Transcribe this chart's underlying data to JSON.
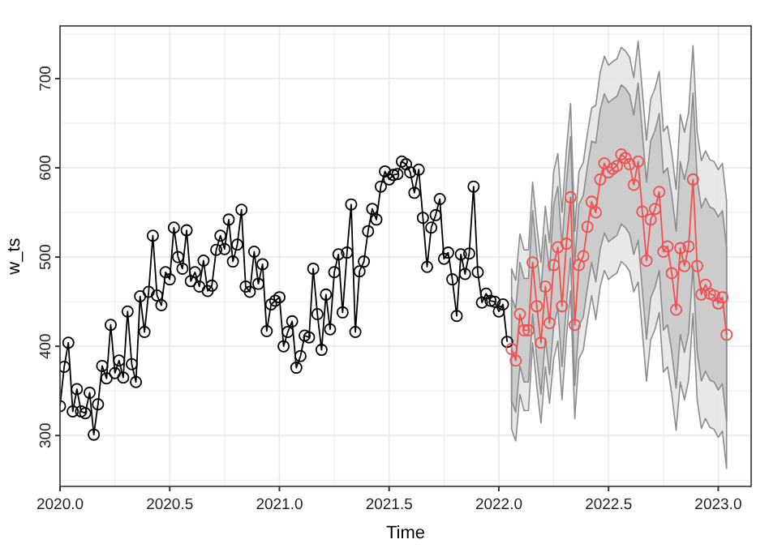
{
  "chart_data": {
    "type": "line",
    "xlabel": "Time",
    "ylabel": "w_ts",
    "xlim": [
      2020.0,
      2023.15
    ],
    "ylim": [
      243,
      759
    ],
    "xticks": [
      {
        "value": 2020,
        "label": "2020.0"
      },
      {
        "value": 2020.25,
        "label": null
      },
      {
        "value": 2020.5,
        "label": "2020.5"
      },
      {
        "value": 2020.75,
        "label": null
      },
      {
        "value": 2021,
        "label": "2021.0"
      },
      {
        "value": 2021.25,
        "label": null
      },
      {
        "value": 2021.5,
        "label": "2021.5"
      },
      {
        "value": 2021.75,
        "label": null
      },
      {
        "value": 2022,
        "label": "2022.0"
      },
      {
        "value": 2022.25,
        "label": null
      },
      {
        "value": 2022.5,
        "label": "2022.5"
      },
      {
        "value": 2022.75,
        "label": null
      },
      {
        "value": 2023,
        "label": "2023.0"
      }
    ],
    "yticks": [
      {
        "value": 250,
        "label": null
      },
      300,
      {
        "value": 350,
        "label": null
      },
      400,
      {
        "value": 450,
        "label": null
      },
      500,
      {
        "value": 550,
        "label": null
      },
      600,
      {
        "value": 650,
        "label": null
      },
      700,
      {
        "value": 750,
        "label": null
      }
    ],
    "grid": true,
    "marker": "circle",
    "line_style": "solid",
    "series": [
      {
        "color": "#000000",
        "x": [
          2020.0,
          2020.019,
          2020.038,
          2020.058,
          2020.077,
          2020.096,
          2020.115,
          2020.135,
          2020.154,
          2020.173,
          2020.192,
          2020.212,
          2020.231,
          2020.25,
          2020.269,
          2020.288,
          2020.308,
          2020.327,
          2020.346,
          2020.365,
          2020.385,
          2020.404,
          2020.423,
          2020.442,
          2020.462,
          2020.481,
          2020.5,
          2020.519,
          2020.538,
          2020.558,
          2020.577,
          2020.596,
          2020.615,
          2020.635,
          2020.654,
          2020.673,
          2020.692,
          2020.712,
          2020.731,
          2020.75,
          2020.769,
          2020.788,
          2020.808,
          2020.827,
          2020.846,
          2020.865,
          2020.885,
          2020.904,
          2020.923,
          2020.942,
          2020.962,
          2020.981,
          2021.0,
          2021.019,
          2021.038,
          2021.058,
          2021.077,
          2021.096,
          2021.115,
          2021.135,
          2021.154,
          2021.173,
          2021.192,
          2021.212,
          2021.231,
          2021.25,
          2021.269,
          2021.288,
          2021.308,
          2021.327,
          2021.346,
          2021.365,
          2021.385,
          2021.404,
          2021.423,
          2021.442,
          2021.462,
          2021.481,
          2021.5,
          2021.519,
          2021.538,
          2021.558,
          2021.577,
          2021.596,
          2021.615,
          2021.635,
          2021.654,
          2021.673,
          2021.692,
          2021.712,
          2021.731,
          2021.75,
          2021.769,
          2021.788,
          2021.808,
          2021.827,
          2021.846,
          2021.865,
          2021.885,
          2021.904,
          2021.923,
          2021.942,
          2021.962,
          2021.981,
          2022.0,
          2022.019,
          2022.038
        ],
        "values": [
          333,
          377,
          404,
          327,
          352,
          327,
          325,
          348,
          301,
          335,
          378,
          364,
          424,
          370,
          384,
          365,
          439,
          380,
          360,
          456,
          416,
          461,
          524,
          457,
          446,
          483,
          475,
          533,
          500,
          487,
          530,
          473,
          483,
          467,
          496,
          462,
          468,
          508,
          524,
          509,
          542,
          495,
          514,
          553,
          467,
          461,
          506,
          470,
          492,
          417,
          447,
          451,
          455,
          400,
          416,
          428,
          376,
          389,
          412,
          410,
          487,
          436,
          396,
          458,
          419,
          483,
          503,
          438,
          505,
          559,
          416,
          484,
          495,
          529,
          554,
          542,
          579,
          596,
          587,
          592,
          593,
          607,
          604,
          595,
          572,
          598,
          544,
          489,
          533,
          547,
          565,
          498,
          505,
          475,
          434,
          503,
          481,
          504,
          579,
          483,
          449,
          459,
          451,
          450,
          439,
          447,
          405
        ]
      },
      {
        "color": "#f05050",
        "x": [
          2022.058,
          2022.077,
          2022.096,
          2022.115,
          2022.135,
          2022.154,
          2022.173,
          2022.192,
          2022.212,
          2022.231,
          2022.25,
          2022.269,
          2022.288,
          2022.308,
          2022.327,
          2022.346,
          2022.365,
          2022.385,
          2022.404,
          2022.423,
          2022.442,
          2022.462,
          2022.481,
          2022.5,
          2022.519,
          2022.538,
          2022.558,
          2022.577,
          2022.596,
          2022.615,
          2022.635,
          2022.654,
          2022.673,
          2022.692,
          2022.712,
          2022.731,
          2022.75,
          2022.769,
          2022.788,
          2022.808,
          2022.827,
          2022.846,
          2022.865,
          2022.885,
          2022.904,
          2022.923,
          2022.942,
          2022.962,
          2022.981,
          2023.0,
          2023.019,
          2023.038
        ],
        "values": [
          397,
          384,
          436,
          418,
          418,
          494,
          445,
          404,
          467,
          426,
          491,
          511,
          445,
          515,
          567,
          424,
          491,
          501,
          534,
          562,
          550,
          587,
          605,
          595,
          599,
          602,
          615,
          611,
          604,
          581,
          607,
          551,
          496,
          542,
          554,
          573,
          506,
          512,
          482,
          441,
          510,
          490,
          512,
          587,
          490,
          458,
          469,
          459,
          457,
          448,
          455,
          413
        ],
        "lower": [
          339,
          326,
          378,
          360,
          360,
          436,
          387,
          346,
          409,
          368,
          423,
          443,
          377,
          447,
          499,
          356,
          423,
          433,
          466,
          494,
          472,
          509,
          527,
          517,
          521,
          524,
          537,
          533,
          526,
          503,
          519,
          463,
          408,
          454,
          466,
          485,
          418,
          424,
          394,
          353,
          413,
          393,
          415,
          490,
          393,
          361,
          372,
          362,
          360,
          351,
          358,
          316
        ],
        "upper": [
          455,
          442,
          494,
          476,
          476,
          552,
          503,
          462,
          525,
          484,
          559,
          579,
          513,
          583,
          635,
          492,
          559,
          569,
          602,
          630,
          628,
          665,
          683,
          673,
          677,
          680,
          693,
          689,
          682,
          659,
          695,
          639,
          584,
          630,
          642,
          661,
          594,
          600,
          570,
          529,
          607,
          587,
          609,
          684,
          587,
          555,
          566,
          556,
          554,
          545,
          552,
          510
        ]
      },
      {
        "type": "area",
        "color": "#e6e6e6",
        "values": [
          null,
          null,
          null,
          null,
          null,
          null,
          null,
          null,
          null,
          null,
          null,
          null,
          null,
          null,
          null,
          null,
          null,
          null,
          null,
          null,
          null,
          null,
          null,
          null,
          null,
          null,
          null,
          null,
          null,
          null,
          null,
          null,
          null,
          null,
          null,
          null,
          null,
          null,
          null,
          null,
          null,
          null,
          null,
          null,
          null,
          null,
          null,
          null,
          null,
          null,
          null,
          null
        ],
        "x": [
          2022.058,
          2022.077,
          2022.096,
          2022.115,
          2022.135,
          2022.154,
          2022.173,
          2022.192,
          2022.212,
          2022.231,
          2022.25,
          2022.269,
          2022.288,
          2022.308,
          2022.327,
          2022.346,
          2022.365,
          2022.385,
          2022.404,
          2022.423,
          2022.442,
          2022.462,
          2022.481,
          2022.5,
          2022.519,
          2022.538,
          2022.558,
          2022.577,
          2022.596,
          2022.615,
          2022.635,
          2022.654,
          2022.673,
          2022.692,
          2022.712,
          2022.731,
          2022.75,
          2022.769,
          2022.788,
          2022.808,
          2022.827,
          2022.846,
          2022.865,
          2022.885,
          2022.904,
          2022.923,
          2022.942,
          2022.962,
          2022.981,
          2023.0,
          2023.019,
          2023.038
        ],
        "lower": [
          307,
          294,
          346,
          328,
          328,
          404,
          355,
          314,
          377,
          336,
          386,
          406,
          340,
          410,
          462,
          319,
          386,
          396,
          429,
          457,
          430,
          467,
          485,
          475,
          479,
          482,
          495,
          491,
          484,
          461,
          472,
          416,
          361,
          407,
          419,
          438,
          371,
          377,
          347,
          306,
          360,
          340,
          362,
          437,
          340,
          308,
          319,
          309,
          307,
          298,
          305,
          263
        ],
        "upper": [
          487,
          474,
          526,
          508,
          508,
          584,
          535,
          494,
          557,
          516,
          596,
          616,
          550,
          620,
          672,
          529,
          596,
          606,
          639,
          667,
          670,
          707,
          725,
          715,
          719,
          722,
          735,
          731,
          724,
          701,
          742,
          686,
          631,
          677,
          689,
          708,
          641,
          647,
          617,
          576,
          660,
          640,
          662,
          737,
          640,
          608,
          619,
          609,
          607,
          598,
          605,
          563
        ]
      }
    ]
  }
}
